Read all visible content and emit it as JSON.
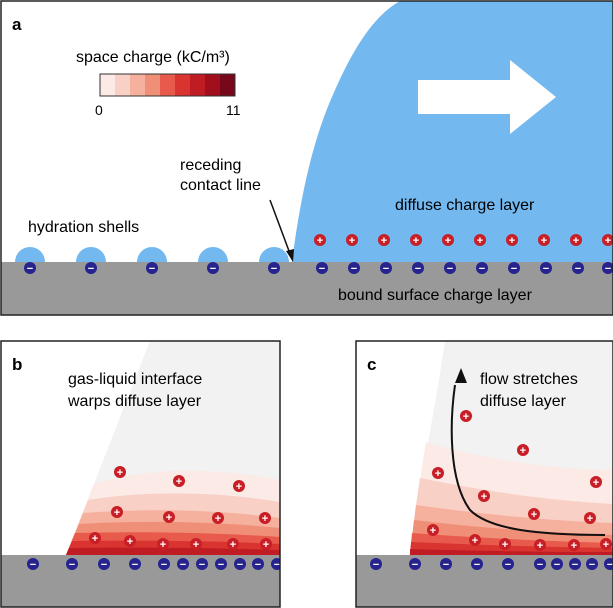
{
  "panel_a": {
    "letter": "a",
    "colorbar": {
      "title": "space charge (kC/m³)",
      "min_label": "0",
      "max_label": "11",
      "colors": [
        "#fbeae6",
        "#f9d0c6",
        "#f5b09e",
        "#f08f78",
        "#e85a4c",
        "#d93430",
        "#c01c24",
        "#a10f1c",
        "#77071a"
      ]
    },
    "arrow_color": "#ffffff",
    "liquid_color": "#73b9f0",
    "labels": {
      "receding_line1": "receding",
      "receding_line2": "contact line",
      "diffuse": "diffuse charge layer",
      "hydration": "hydration shells",
      "bound": "bound surface charge layer"
    }
  },
  "panel_b": {
    "letter": "b",
    "text_line1": "gas-liquid interface",
    "text_line2": "warps diffuse layer"
  },
  "panel_c": {
    "letter": "c",
    "text_line1": "flow stretches",
    "text_line2": "diffuse layer"
  },
  "ions": {
    "positive_symbol": "+",
    "negative_symbol": "−",
    "positive_color": "#c81e26",
    "negative_color": "#26238f"
  },
  "colors": {
    "substrate": "#999999",
    "hydration_shell": "#73b9f0"
  }
}
